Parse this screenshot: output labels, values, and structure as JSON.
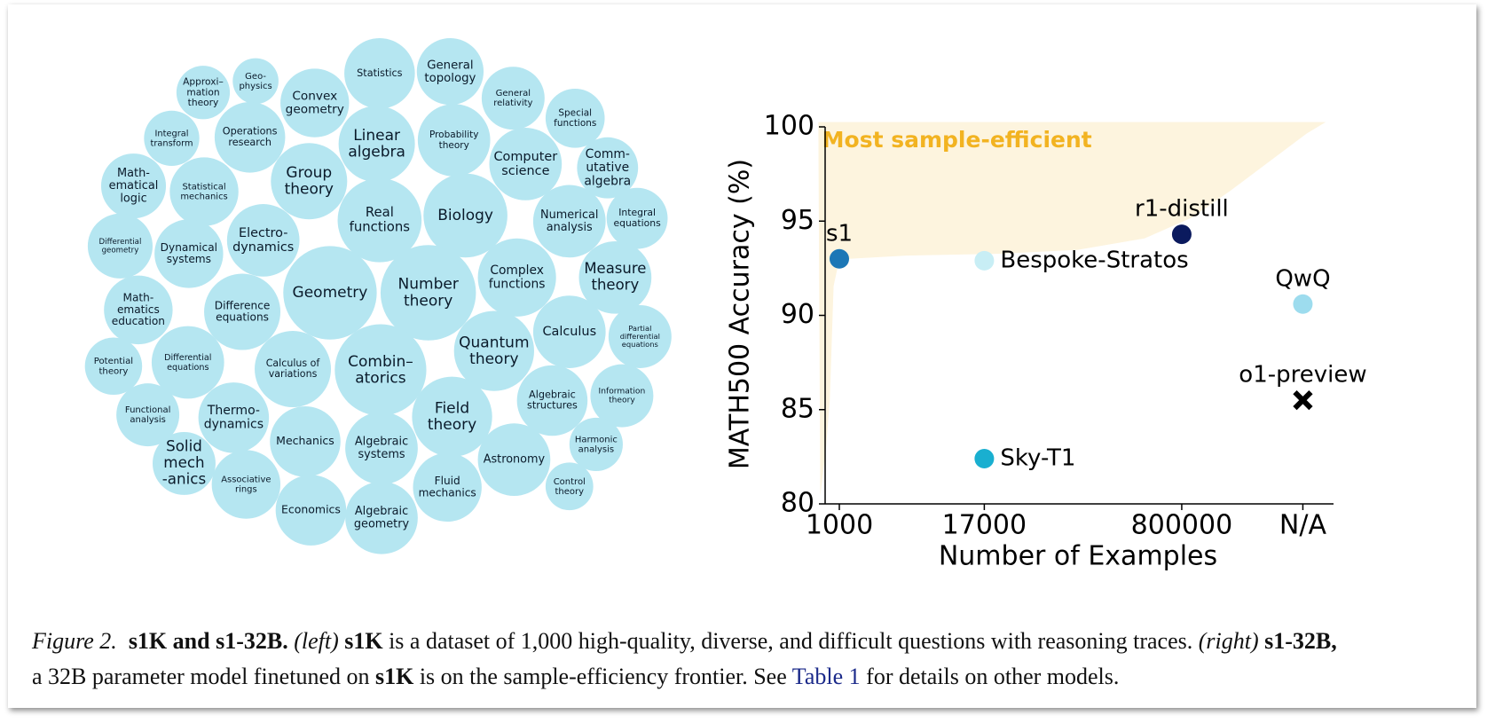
{
  "bubbles": {
    "color": "#b5e6f1",
    "topics": [
      [
        "Approxi–",
        "mation",
        "theory"
      ],
      [
        "Geo-",
        "physics"
      ],
      [
        "Convex",
        "geometry"
      ],
      [
        "Statistics"
      ],
      [
        "General",
        "topology"
      ],
      [
        "General",
        "relativity"
      ],
      [
        "Special",
        "functions"
      ],
      [
        "Integral",
        "transform"
      ],
      [
        "Operations",
        "research"
      ],
      [
        "Linear",
        "algebra"
      ],
      [
        "Probability",
        "theory"
      ],
      [
        "Computer",
        "science"
      ],
      [
        "Comm-",
        "utative",
        "algebra"
      ],
      [
        "Math-",
        "ematical",
        "logic"
      ],
      [
        "Statistical",
        "mechanics"
      ],
      [
        "Group",
        "theory"
      ],
      [
        "Real",
        "functions"
      ],
      [
        "Biology"
      ],
      [
        "Numerical",
        "analysis"
      ],
      [
        "Integral",
        "equations"
      ],
      [
        "Differential",
        "geometry"
      ],
      [
        "Dynamical",
        "systems"
      ],
      [
        "Electro-",
        "dynamics"
      ],
      [
        "Geometry"
      ],
      [
        "Number",
        "theory"
      ],
      [
        "Complex",
        "functions"
      ],
      [
        "Measure",
        "theory"
      ],
      [
        "Math-",
        "ematics",
        "education"
      ],
      [
        "Difference",
        "equations"
      ],
      [
        "Partial",
        "differential",
        "equations"
      ],
      [
        "Quantum",
        "theory"
      ],
      [
        "Calculus"
      ],
      [
        "Potential",
        "theory"
      ],
      [
        "Differential",
        "equations"
      ],
      [
        "Calculus of",
        "variations"
      ],
      [
        "Combin–",
        "atorics"
      ],
      [
        "Information",
        "theory"
      ],
      [
        "Algebraic",
        "structures"
      ],
      [
        "Functional",
        "analysis"
      ],
      [
        "Thermo-",
        "dynamics"
      ],
      [
        "Field",
        "theory"
      ],
      [
        "Harmonic",
        "analysis"
      ],
      [
        "Mechanics"
      ],
      [
        "Algebraic",
        "systems"
      ],
      [
        "Solid",
        "mech",
        "-anics"
      ],
      [
        "Astronomy"
      ],
      [
        "Associative",
        "rings"
      ],
      [
        "Fluid",
        "mechanics"
      ],
      [
        "Control",
        "theory"
      ],
      [
        "Economics"
      ],
      [
        "Algebraic",
        "geometry"
      ]
    ]
  },
  "chart_data": {
    "type": "scatter",
    "annotation": "Most sample-efficient",
    "annotation_color": "#f2b321",
    "region_color": "#fdf4de",
    "xlabel": "Number of Examples",
    "ylabel": "MATH500 Accuracy (%)",
    "categories": [
      "1000",
      "17000",
      "800000",
      "N/A"
    ],
    "ylim": [
      80,
      100
    ],
    "yticks": [
      80,
      85,
      90,
      95,
      100
    ],
    "series": [
      {
        "name": "s1",
        "color": "#1c77b6",
        "marker": "circle",
        "x": [
          "1000"
        ],
        "values": [
          93.0
        ]
      },
      {
        "name": "Bespoke-Stratos",
        "color": "#c8eef5",
        "marker": "circle",
        "x": [
          "17000"
        ],
        "values": [
          92.9
        ]
      },
      {
        "name": "r1-distill",
        "color": "#0b1a5e",
        "marker": "circle",
        "x": [
          "800000"
        ],
        "values": [
          94.3
        ]
      },
      {
        "name": "QwQ",
        "color": "#9ddcee",
        "marker": "circle",
        "x": [
          "N/A"
        ],
        "values": [
          90.6
        ]
      },
      {
        "name": "o1-preview",
        "color": "#000000",
        "marker": "cross",
        "x": [
          "N/A"
        ],
        "values": [
          85.5
        ]
      },
      {
        "name": "Sky-T1",
        "color": "#19afd0",
        "marker": "circle",
        "x": [
          "17000"
        ],
        "values": [
          82.4
        ]
      }
    ]
  },
  "caption": {
    "parts": [
      "Figure 2.",
      "s1K and s1-32B.",
      "(left)",
      "s1K",
      "is a dataset of 1,000 high-quality, diverse, and difficult questions with reasoning traces.",
      "(right)",
      "s1-32B,",
      "a 32B parameter model finetuned on",
      "s1K",
      "is on the sample-efficiency frontier. See",
      "Table 1",
      "for details on other models."
    ]
  }
}
